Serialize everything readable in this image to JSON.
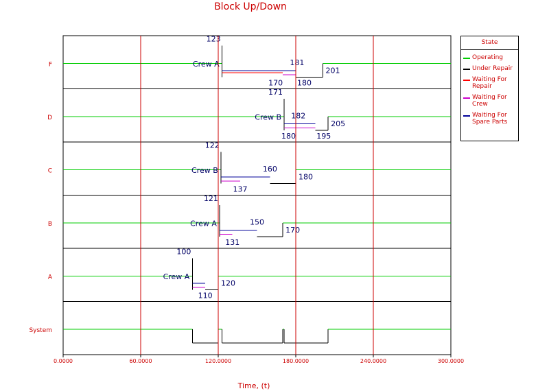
{
  "title": "Block Up/Down",
  "xlabel": "Time, (t)",
  "colors": {
    "operating": "#00cc00",
    "under_repair": "#000000",
    "waiting_repair": "#ff0000",
    "waiting_crew": "#cc00cc",
    "waiting_parts": "#000099",
    "grid": "#000000",
    "time_marker": "#cc0000",
    "annotation": "#000066",
    "label": "#cc0000"
  },
  "legend": {
    "title": "State",
    "items": [
      {
        "label": "Operating",
        "color": "#00cc00"
      },
      {
        "label": "Under Repair",
        "color": "#000000"
      },
      {
        "label": "Waiting For Repair",
        "color": "#ff0000"
      },
      {
        "label": "Waiting For Crew",
        "color": "#cc00cc"
      },
      {
        "label": "Waiting For Spare Parts",
        "color": "#000099"
      }
    ]
  },
  "chart_data": {
    "type": "timeline",
    "title": "Block Up/Down",
    "xlabel": "Time, (t)",
    "xlim": [
      0,
      300
    ],
    "xticks": [
      0,
      60,
      120,
      180,
      240,
      300
    ],
    "xtick_labels": [
      "0.0000",
      "60.0000",
      "120.0000",
      "180.0000",
      "240.0000",
      "300.0000"
    ],
    "time_markers": [
      60,
      120,
      180,
      240
    ],
    "rows": [
      {
        "name": "F",
        "crew": "Crew A",
        "downtime": [
          123,
          201
        ],
        "waiting_repair": [
          123,
          170
        ],
        "waiting_crew": [
          170,
          180
        ],
        "repair": [
          180,
          201
        ],
        "labels": [
          {
            "text": "123",
            "t": 123,
            "pos": "top"
          },
          {
            "text": "181",
            "t": 181,
            "pos": "mid-top"
          },
          {
            "text": "170",
            "t": 170,
            "pos": "bottom-left"
          },
          {
            "text": "180",
            "t": 180,
            "pos": "bottom-right"
          },
          {
            "text": "201",
            "t": 201,
            "pos": "right"
          }
        ]
      },
      {
        "name": "D",
        "crew": "Crew B",
        "downtime": [
          171,
          205
        ],
        "waiting_crew": [
          171,
          180
        ],
        "waiting_repair_crew": [
          180,
          195
        ],
        "repair": [
          195,
          205
        ],
        "labels": [
          {
            "text": "171",
            "t": 171,
            "pos": "top"
          },
          {
            "text": "182",
            "t": 182,
            "pos": "mid-top"
          },
          {
            "text": "180",
            "t": 180,
            "pos": "bottom-left"
          },
          {
            "text": "195",
            "t": 195,
            "pos": "bottom-right"
          },
          {
            "text": "205",
            "t": 205,
            "pos": "right"
          }
        ]
      },
      {
        "name": "C",
        "crew": "Crew B",
        "downtime": [
          122,
          180
        ],
        "waiting_crew": [
          122,
          137
        ],
        "repair": [
          160,
          180
        ],
        "labels": [
          {
            "text": "122",
            "t": 122,
            "pos": "top"
          },
          {
            "text": "160",
            "t": 160,
            "pos": "mid-top"
          },
          {
            "text": "137",
            "t": 137,
            "pos": "bottom"
          },
          {
            "text": "180",
            "t": 180,
            "pos": "right"
          }
        ]
      },
      {
        "name": "B",
        "crew": "Crew A",
        "downtime": [
          121,
          170
        ],
        "waiting_crew": [
          121,
          131
        ],
        "repair": [
          150,
          170
        ],
        "labels": [
          {
            "text": "121",
            "t": 121,
            "pos": "top"
          },
          {
            "text": "150",
            "t": 150,
            "pos": "mid-top"
          },
          {
            "text": "131",
            "t": 131,
            "pos": "bottom"
          },
          {
            "text": "170",
            "t": 170,
            "pos": "right"
          }
        ]
      },
      {
        "name": "A",
        "crew": "Crew A",
        "downtime": [
          100,
          120
        ],
        "waiting_crew": [
          100,
          110
        ],
        "repair": [
          110,
          120
        ],
        "labels": [
          {
            "text": "100",
            "t": 100,
            "pos": "top"
          },
          {
            "text": "110",
            "t": 110,
            "pos": "bottom"
          },
          {
            "text": "120",
            "t": 120,
            "pos": "right"
          }
        ]
      },
      {
        "name": "System",
        "downtime_intervals": [
          [
            100,
            120
          ],
          [
            123,
            170
          ],
          [
            171,
            205
          ]
        ]
      }
    ]
  }
}
